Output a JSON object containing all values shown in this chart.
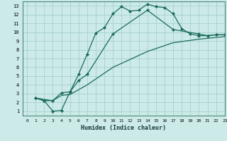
{
  "xlabel": "Humidex (Indice chaleur)",
  "bg_color": "#cceae8",
  "grid_color": "#aad4d0",
  "line_color": "#1a6b5a",
  "xlim": [
    -0.5,
    23
  ],
  "ylim": [
    0.5,
    13.5
  ],
  "xticks": [
    0,
    1,
    2,
    3,
    4,
    5,
    6,
    7,
    8,
    9,
    10,
    11,
    12,
    13,
    14,
    15,
    16,
    17,
    18,
    19,
    20,
    21,
    22,
    23
  ],
  "yticks": [
    1,
    2,
    3,
    4,
    5,
    6,
    7,
    8,
    9,
    10,
    11,
    12,
    13
  ],
  "series1_x": [
    1,
    2,
    3,
    4,
    5,
    6,
    7,
    8,
    9,
    10,
    11,
    12,
    13,
    14,
    15,
    16,
    17,
    18,
    19,
    20,
    21,
    22,
    23
  ],
  "series1_y": [
    2.5,
    2.2,
    1.0,
    1.1,
    3.2,
    5.2,
    7.5,
    9.9,
    10.5,
    12.1,
    12.9,
    12.4,
    12.5,
    13.2,
    12.9,
    12.8,
    12.1,
    10.4,
    9.8,
    9.6,
    9.6,
    9.7,
    9.7
  ],
  "series2_x": [
    1,
    2,
    3,
    4,
    5,
    6,
    7,
    10,
    14,
    17,
    20,
    21,
    22,
    23
  ],
  "series2_y": [
    2.5,
    2.2,
    2.2,
    3.1,
    3.2,
    4.5,
    5.2,
    9.8,
    12.5,
    10.3,
    9.8,
    9.6,
    9.7,
    9.7
  ],
  "series3_x": [
    1,
    3,
    4,
    5,
    7,
    10,
    14,
    17,
    20,
    23
  ],
  "series3_y": [
    2.5,
    2.2,
    2.8,
    2.9,
    4.0,
    6.0,
    7.8,
    8.8,
    9.2,
    9.5
  ]
}
